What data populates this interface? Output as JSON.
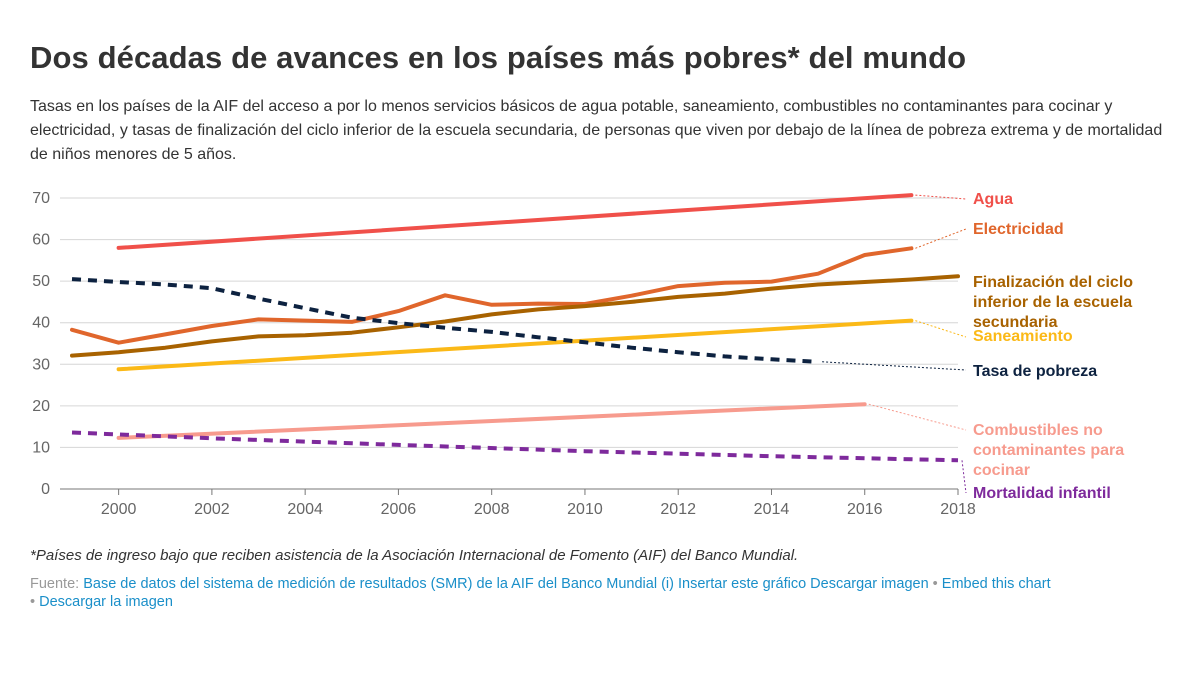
{
  "title": "Dos décadas de avances en los países más pobres* del mundo",
  "subtitle": "Tasas en los países de la AIF del acceso a por lo menos servicios básicos de agua potable, saneamiento, combustibles no contaminantes para cocinar y electricidad, y tasas de finalización del ciclo inferior de la escuela secundaria, de personas que viven por debajo de la línea de pobreza extrema y de mortalidad de niños menores de 5 años.",
  "footnote": "*Países de ingreso bajo que reciben asistencia de la Asociación Internacional de Fomento (AIF) del Banco Mundial.",
  "source": {
    "prefix": "Fuente: ",
    "link": "Base de datos del sistema de medición de resultados (SMR) de la AIF del Banco Mundial (i) Insertar este gráfico Descargar imagen",
    "sep1": " • ",
    "embed": "Embed this chart",
    "sep2": "• ",
    "download": "Descargar la imagen"
  },
  "chart_data": {
    "type": "line",
    "xlim": [
      1999,
      2018
    ],
    "ylim": [
      0,
      70
    ],
    "xticks": [
      2000,
      2002,
      2004,
      2006,
      2008,
      2010,
      2012,
      2014,
      2016,
      2018
    ],
    "yticks": [
      0,
      10,
      20,
      30,
      40,
      50,
      60,
      70
    ],
    "grid": true,
    "legend": "right, inline labels",
    "series": [
      {
        "name": "Agua",
        "key": "agua",
        "color": "#f0504a",
        "dashed": false,
        "label_lines": [
          "Agua"
        ],
        "x": [
          2000,
          2017
        ],
        "y": [
          58,
          70.7
        ]
      },
      {
        "name": "Electricidad",
        "key": "electricidad",
        "color": "#e0662c",
        "dashed": false,
        "label_lines": [
          "Electricidad"
        ],
        "x": [
          1999,
          2000,
          2001,
          2002,
          2003,
          2004,
          2005,
          2006,
          2007,
          2008,
          2009,
          2010,
          2011,
          2012,
          2013,
          2014,
          2015,
          2016,
          2017
        ],
        "y": [
          38.3,
          35.2,
          37.2,
          39.2,
          40.8,
          40.5,
          40.2,
          42.8,
          46.6,
          44.3,
          44.6,
          44.5,
          46.5,
          48.8,
          49.6,
          49.9,
          51.8,
          56.3,
          57.9
        ]
      },
      {
        "name": "Finalización del ciclo inferior de la escuela secundaria",
        "key": "secundaria",
        "color": "#a86200",
        "dashed": false,
        "label_lines": [
          "Finalización del ciclo",
          "inferior de la escuela",
          "secundaria"
        ],
        "x": [
          1999,
          2000,
          2001,
          2002,
          2003,
          2004,
          2005,
          2006,
          2007,
          2008,
          2009,
          2010,
          2011,
          2012,
          2013,
          2014,
          2015,
          2016,
          2017,
          2018
        ],
        "y": [
          32.1,
          32.9,
          34,
          35.5,
          36.7,
          37,
          37.6,
          38.9,
          40.3,
          42,
          43.2,
          44,
          45,
          46.2,
          47,
          48.2,
          49.2,
          49.8,
          50.4,
          51.2
        ]
      },
      {
        "name": "Saneamiento",
        "key": "saneamiento",
        "color": "#fbb917",
        "dashed": false,
        "label_lines": [
          "Saneamiento"
        ],
        "x": [
          2000,
          2017
        ],
        "y": [
          28.8,
          40.5
        ]
      },
      {
        "name": "Tasa de pobreza",
        "key": "pobreza",
        "color": "#0d2240",
        "dashed": true,
        "label_lines": [
          "Tasa de pobreza"
        ],
        "x": [
          1999,
          2000,
          2001,
          2002,
          2003,
          2004,
          2005,
          2006,
          2007,
          2008,
          2009,
          2010,
          2011,
          2012,
          2013,
          2014,
          2015
        ],
        "y": [
          50.5,
          49.8,
          49.2,
          48.3,
          45.8,
          43.5,
          41.2,
          39.9,
          38.8,
          37.8,
          36.5,
          35.3,
          34,
          32.9,
          31.9,
          31.2,
          30.6
        ]
      },
      {
        "name": "Combustibles no contaminantes para cocinar",
        "key": "combustibles",
        "color": "#f79b8e",
        "dashed": false,
        "label_lines": [
          "Combustibles no",
          "contaminantes para",
          "cocinar"
        ],
        "x": [
          2000,
          2016
        ],
        "y": [
          12.3,
          20.4
        ]
      },
      {
        "name": "Mortalidad infantil",
        "key": "mortalidad",
        "color": "#7e2a9c",
        "dashed": true,
        "label_lines": [
          "Mortalidad infantil"
        ],
        "x": [
          1999,
          2002,
          2006,
          2010,
          2014,
          2018
        ],
        "y": [
          13.6,
          12.2,
          10.6,
          9.1,
          7.9,
          6.9
        ]
      }
    ]
  }
}
